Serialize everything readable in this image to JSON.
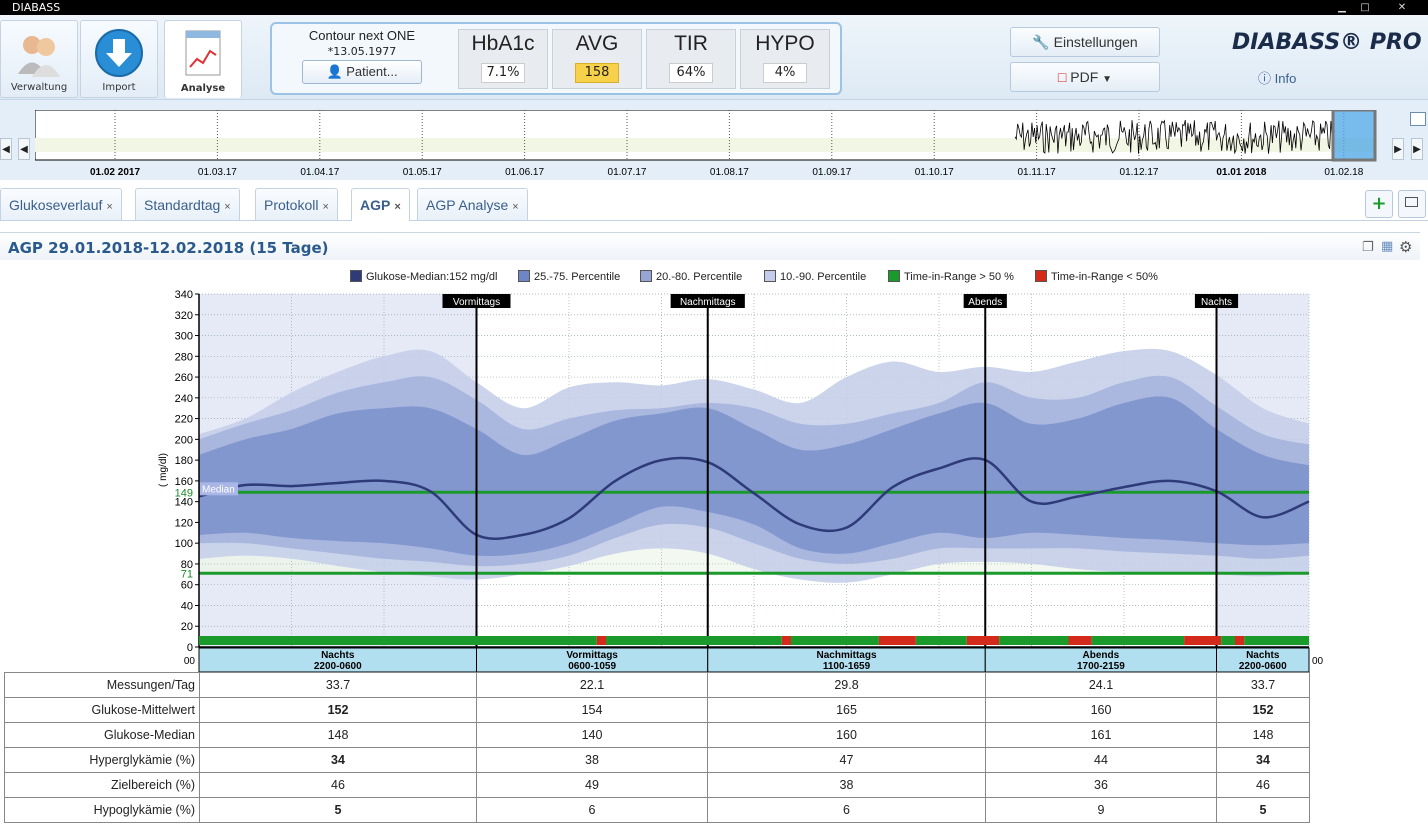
{
  "window": {
    "title": "DIABASS",
    "min": "▁",
    "max": "□",
    "close": "✕"
  },
  "nav": {
    "verwaltung": "Verwaltung",
    "import": "Import",
    "analyse": "Analyse"
  },
  "patient": {
    "device": "Contour next ONE",
    "dob": "*13.05.1977",
    "button": "Patient..."
  },
  "kpis": [
    {
      "label": "HbA1c",
      "value": "7.1%",
      "highlight": false
    },
    {
      "label": "AVG",
      "value": "158",
      "highlight": true
    },
    {
      "label": "TIR",
      "value": "64%",
      "highlight": false
    },
    {
      "label": "HYPO",
      "value": "4%",
      "highlight": false
    }
  ],
  "toolbar": {
    "settings": "Einstellungen",
    "pdf": "PDF",
    "brand": "DIABASS® PRO",
    "info": "Info"
  },
  "timeline": {
    "labels": [
      "01.02 2017",
      "01.03.17",
      "01.04.17",
      "01.05.17",
      "01.06.17",
      "01.07.17",
      "01.08.17",
      "01.09.17",
      "01.10.17",
      "01.11.17",
      "01.12.17",
      "01.01 2018",
      "01.02.18"
    ],
    "bold": [
      "01.02 2017",
      "01.01 2018"
    ]
  },
  "tabs": [
    {
      "label": "Glukoseverlauf",
      "active": false
    },
    {
      "label": "Standardtag",
      "active": false
    },
    {
      "label": "Protokoll",
      "active": false
    },
    {
      "label": "AGP",
      "active": true
    },
    {
      "label": "AGP Analyse",
      "active": false
    }
  ],
  "tab_close": "×",
  "panel": {
    "title": "AGP 29.01.2018-12.02.2018 (15 Tage)"
  },
  "legend": [
    {
      "label": "Glukose-Median:152 mg/dl",
      "color": "#2e3b78"
    },
    {
      "label": "25.-75. Percentile",
      "color": "#6f86c6"
    },
    {
      "label": "20.-80. Percentile",
      "color": "#95a6d6"
    },
    {
      "label": "10.-90. Percentile",
      "color": "#c3cde9"
    },
    {
      "label": "Time-in-Range > 50 %",
      "color": "#1a9a2a"
    },
    {
      "label": "Time-in-Range < 50%",
      "color": "#d42a1c"
    }
  ],
  "chart_data": {
    "type": "area",
    "ylabel": "( mg/dl)",
    "ylim": [
      0,
      340
    ],
    "yticks": [
      0,
      20,
      40,
      60,
      80,
      100,
      120,
      140,
      160,
      180,
      200,
      220,
      240,
      260,
      280,
      300,
      320,
      340
    ],
    "x_label_left": "00",
    "x_label_right": "00",
    "target_lines": [
      {
        "value": 149,
        "label": "149"
      },
      {
        "value": 71,
        "label": "71"
      }
    ],
    "median_tag": "Median",
    "grid": true,
    "segments": [
      {
        "name": "Vormittags",
        "hour": 6
      },
      {
        "name": "Nachmittags",
        "hour": 11
      },
      {
        "name": "Abends",
        "hour": 17
      },
      {
        "name": "Nachts",
        "hour": 22
      }
    ],
    "hours": [
      0,
      1,
      2,
      3,
      4,
      5,
      6,
      7,
      8,
      9,
      10,
      11,
      12,
      13,
      14,
      15,
      16,
      17,
      18,
      19,
      20,
      21,
      22,
      23,
      24
    ],
    "median": [
      145,
      156,
      155,
      158,
      160,
      150,
      108,
      108,
      124,
      160,
      180,
      178,
      148,
      118,
      115,
      154,
      172,
      180,
      140,
      145,
      154,
      160,
      150,
      125,
      140
    ],
    "p25": [
      108,
      110,
      105,
      102,
      100,
      95,
      88,
      90,
      100,
      118,
      135,
      130,
      118,
      95,
      90,
      100,
      110,
      105,
      110,
      108,
      105,
      103,
      100,
      98,
      100
    ],
    "p75": [
      185,
      200,
      210,
      225,
      230,
      230,
      210,
      185,
      200,
      218,
      225,
      230,
      210,
      190,
      195,
      210,
      225,
      235,
      215,
      220,
      235,
      240,
      210,
      185,
      175
    ],
    "p20": [
      100,
      100,
      95,
      90,
      85,
      82,
      78,
      80,
      88,
      105,
      118,
      115,
      100,
      85,
      80,
      85,
      95,
      95,
      95,
      95,
      92,
      90,
      88,
      85,
      88
    ],
    "p80": [
      200,
      215,
      228,
      245,
      255,
      260,
      238,
      210,
      220,
      228,
      230,
      235,
      230,
      215,
      215,
      225,
      235,
      255,
      240,
      240,
      255,
      260,
      232,
      205,
      195
    ],
    "p10": [
      85,
      88,
      85,
      78,
      72,
      68,
      65,
      70,
      78,
      90,
      95,
      90,
      75,
      65,
      62,
      70,
      80,
      82,
      80,
      75,
      72,
      70,
      70,
      68,
      72
    ],
    "p90": [
      205,
      220,
      245,
      265,
      280,
      285,
      255,
      230,
      250,
      255,
      252,
      258,
      248,
      235,
      260,
      275,
      265,
      270,
      265,
      275,
      285,
      285,
      262,
      230,
      215
    ],
    "tir_bar": [
      {
        "from": 0,
        "to": 8.6,
        "color": "#1a9a2a"
      },
      {
        "from": 8.6,
        "to": 8.8,
        "color": "#d42a1c"
      },
      {
        "from": 8.8,
        "to": 12.6,
        "color": "#1a9a2a"
      },
      {
        "from": 12.6,
        "to": 12.8,
        "color": "#d42a1c"
      },
      {
        "from": 12.8,
        "to": 14.7,
        "color": "#1a9a2a"
      },
      {
        "from": 14.7,
        "to": 15.5,
        "color": "#d42a1c"
      },
      {
        "from": 15.5,
        "to": 16.6,
        "color": "#1a9a2a"
      },
      {
        "from": 16.6,
        "to": 17.3,
        "color": "#d42a1c"
      },
      {
        "from": 17.3,
        "to": 18.8,
        "color": "#1a9a2a"
      },
      {
        "from": 18.8,
        "to": 19.3,
        "color": "#d42a1c"
      },
      {
        "from": 19.3,
        "to": 21.3,
        "color": "#1a9a2a"
      },
      {
        "from": 21.3,
        "to": 22.1,
        "color": "#d42a1c"
      },
      {
        "from": 22.1,
        "to": 22.4,
        "color": "#1a9a2a"
      },
      {
        "from": 22.4,
        "to": 22.6,
        "color": "#d42a1c"
      },
      {
        "from": 22.6,
        "to": 24,
        "color": "#1a9a2a"
      }
    ]
  },
  "periods": [
    {
      "name": "Nachts",
      "range": "2200-0600"
    },
    {
      "name": "Vormittags",
      "range": "0600-1059"
    },
    {
      "name": "Nachmittags",
      "range": "1100-1659"
    },
    {
      "name": "Abends",
      "range": "1700-2159"
    },
    {
      "name": "Nachts",
      "range": "2200-0600"
    }
  ],
  "stats": [
    {
      "label": "Messungen/Tag",
      "values": [
        "33.7",
        "22.1",
        "29.8",
        "24.1",
        "33.7"
      ],
      "bold": false
    },
    {
      "label": "Glukose-Mittelwert",
      "values": [
        "152",
        "154",
        "165",
        "160",
        "152"
      ],
      "bold": true
    },
    {
      "label": "Glukose-Median",
      "values": [
        "148",
        "140",
        "160",
        "161",
        "148"
      ],
      "bold": false
    },
    {
      "label": "Hyperglykämie (%)",
      "values": [
        "34",
        "38",
        "47",
        "44",
        "34"
      ],
      "bold": true
    },
    {
      "label": "Zielbereich (%)",
      "values": [
        "46",
        "49",
        "38",
        "36",
        "46"
      ],
      "bold": false
    },
    {
      "label": "Hypoglykämie (%)",
      "values": [
        "5",
        "6",
        "6",
        "9",
        "5"
      ],
      "bold": true
    }
  ]
}
